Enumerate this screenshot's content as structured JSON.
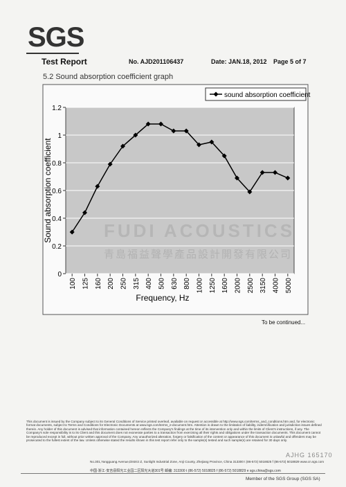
{
  "header": {
    "logo": "SGS",
    "title": "Test Report",
    "number": "No. AJD201106437",
    "date": "Date: JAN.18, 2012",
    "page": "Page 5 of 7"
  },
  "section": "5.2  Sound absorption coefficient graph",
  "chart_data": {
    "type": "line",
    "xlabel": "Frequency, Hz",
    "ylabel": "Sound absorption coefficient",
    "categories": [
      "100",
      "125",
      "160",
      "200",
      "250",
      "315",
      "400",
      "500",
      "630",
      "800",
      "1000",
      "1250",
      "1600",
      "2000",
      "2500",
      "3150",
      "4000",
      "5000"
    ],
    "series": [
      {
        "name": "sound absorption coefficient",
        "color": "#000000",
        "values": [
          0.3,
          0.44,
          0.63,
          0.79,
          0.92,
          1.0,
          1.08,
          1.08,
          1.03,
          1.03,
          0.93,
          0.95,
          0.85,
          0.69,
          0.59,
          0.73,
          0.73,
          0.69
        ]
      }
    ],
    "ylim": [
      0,
      1.2
    ],
    "yticks": [
      0,
      0.2,
      0.4,
      0.6,
      0.8,
      1,
      1.2
    ],
    "grid": true,
    "legend": "top-right"
  },
  "watermark": {
    "brand": "FUDI ACOUSTICS",
    "company": "青島福益聲學產品設計開發有限公司"
  },
  "continued": "To be continued...",
  "footer": {
    "disclaimer": "This document is issued by the Company subject to its General Conditions of Service printed overleaf, available on request or accessible at http://www.sgs.com/terms_and_conditions.htm and, for electronic format documents, subject to Terms and Conditions for Electronic Documents at www.sgs.com/terms_e-document.htm. Attention is drawn to the limitation of liability, indemnification and jurisdiction issues defined therein. Any holder of this document is advised that information contained hereon reflects the Company's findings at the time of its intervention only and within the limits of Client's instructions, if any. The Company's sole responsibility is to its Client and this document does not exonerate parties to a transaction from exercising all their rights and obligations under the transaction documents. This document cannot be reproduced except in full, without prior written approval of the Company. Any unauthorized alteration, forgery or falsification of the content or appearance of this document is unlawful and offenders may be prosecuted to the fullest extent of the law. Unless otherwise stated the results shown in this test report refer only to the sample(s) tested and such sample(s) are retained for 30 days only.",
    "address_en": "No.301,Yangguang Avenue,District Z, Sunlight Industrial Zone, Anji County, Zhejiang Province, China   313300   t (86-572) 5018825   f (86-572) 5018829   www.cn.sgs.com",
    "address_cn": "中国·浙江·安吉县阳光工业园二区阳光大道301号   邮编: 313300   t (86-572) 5018825   f (86-572) 5018829   e sgs.china@sgs.com",
    "code": "AJHG 165170",
    "member": "Member of the SGS Group (SGS SA)"
  }
}
